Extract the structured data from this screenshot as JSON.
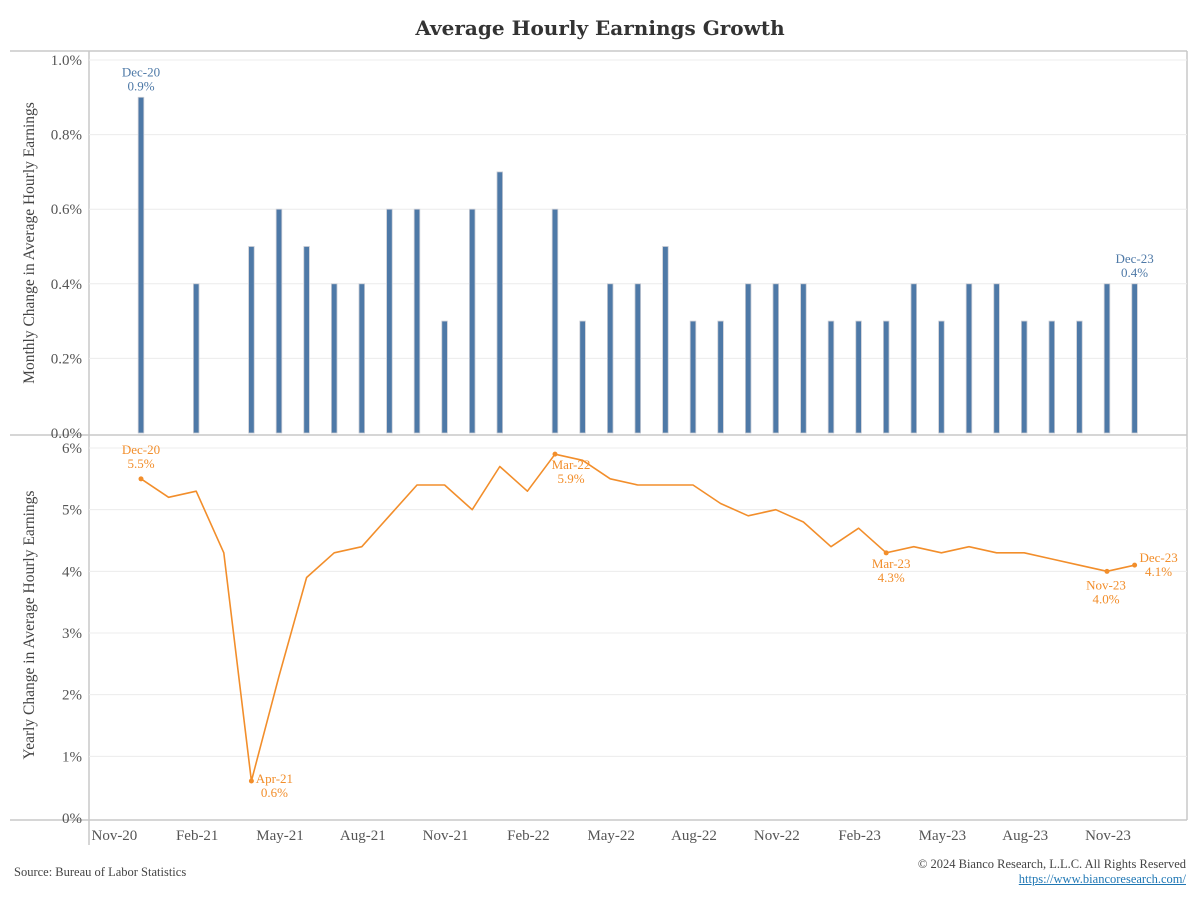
{
  "colors": {
    "bar": "#4e79a7",
    "line": "#f28e2b",
    "grid": "#ececec",
    "axis": "#c8c8c8"
  },
  "footer": {
    "source": "Source: Bureau of Labor Statistics",
    "copyright": "© 2024 Bianco Research, L.L.C. All Rights Reserved",
    "url": "https://www.biancoresearch.com/"
  },
  "chart_data": [
    {
      "type": "bar",
      "title": "Average Hourly Earnings Growth",
      "ylabel": "Monthly Change in Average Hourly Earnings",
      "xlabel": "",
      "ylim": [
        0,
        1.0
      ],
      "yticks": [
        "0.0%",
        "0.2%",
        "0.4%",
        "0.6%",
        "0.8%",
        "1.0%"
      ],
      "ytick_values": [
        0,
        0.2,
        0.4,
        0.6,
        0.8,
        1.0
      ],
      "grid": true,
      "categories": [
        "Dec-20",
        "Jan-21",
        "Feb-21",
        "Mar-21",
        "Apr-21",
        "May-21",
        "Jun-21",
        "Jul-21",
        "Aug-21",
        "Sep-21",
        "Oct-21",
        "Nov-21",
        "Dec-21",
        "Jan-22",
        "Feb-22",
        "Mar-22",
        "Apr-22",
        "May-22",
        "Jun-22",
        "Jul-22",
        "Aug-22",
        "Sep-22",
        "Oct-22",
        "Nov-22",
        "Dec-22",
        "Jan-23",
        "Feb-23",
        "Mar-23",
        "Apr-23",
        "May-23",
        "Jun-23",
        "Jul-23",
        "Aug-23",
        "Sep-23",
        "Oct-23",
        "Nov-23",
        "Dec-23"
      ],
      "values": [
        0.9,
        0.0,
        0.4,
        0.0,
        0.5,
        0.6,
        0.5,
        0.4,
        0.4,
        0.6,
        0.6,
        0.3,
        0.6,
        0.7,
        0.0,
        0.6,
        0.3,
        0.4,
        0.4,
        0.5,
        0.3,
        0.3,
        0.4,
        0.4,
        0.4,
        0.3,
        0.3,
        0.3,
        0.4,
        0.3,
        0.4,
        0.4,
        0.3,
        0.3,
        0.3,
        0.4,
        0.4
      ],
      "annotations": [
        {
          "category": "Dec-20",
          "label": "Dec-20",
          "value_label": "0.9%"
        },
        {
          "category": "Dec-23",
          "label": "Dec-23",
          "value_label": "0.4%"
        }
      ]
    },
    {
      "type": "line",
      "ylabel": "Yearly Change in Average Hourly Earnings",
      "xlabel": "",
      "ylim": [
        0,
        6
      ],
      "yticks": [
        "0%",
        "1%",
        "2%",
        "3%",
        "4%",
        "5%",
        "6%"
      ],
      "ytick_values": [
        0,
        1,
        2,
        3,
        4,
        5,
        6
      ],
      "grid": true,
      "xticks": [
        "Nov-20",
        "Feb-21",
        "May-21",
        "Aug-21",
        "Nov-21",
        "Feb-22",
        "May-22",
        "Aug-22",
        "Nov-22",
        "Feb-23",
        "May-23",
        "Aug-23",
        "Nov-23"
      ],
      "xtick_index": [
        -1,
        2,
        5,
        8,
        11,
        14,
        17,
        20,
        23,
        26,
        29,
        32,
        35
      ],
      "categories": [
        "Dec-20",
        "Jan-21",
        "Feb-21",
        "Mar-21",
        "Apr-21",
        "May-21",
        "Jun-21",
        "Jul-21",
        "Aug-21",
        "Sep-21",
        "Oct-21",
        "Nov-21",
        "Dec-21",
        "Jan-22",
        "Feb-22",
        "Mar-22",
        "Apr-22",
        "May-22",
        "Jun-22",
        "Jul-22",
        "Aug-22",
        "Sep-22",
        "Oct-22",
        "Nov-22",
        "Dec-22",
        "Jan-23",
        "Feb-23",
        "Mar-23",
        "Apr-23",
        "May-23",
        "Jun-23",
        "Jul-23",
        "Aug-23",
        "Sep-23",
        "Oct-23",
        "Nov-23",
        "Dec-23"
      ],
      "values": [
        5.5,
        5.2,
        5.3,
        4.3,
        0.6,
        2.3,
        3.9,
        4.3,
        4.4,
        4.9,
        5.4,
        5.4,
        5.0,
        5.7,
        5.3,
        5.9,
        5.8,
        5.5,
        5.4,
        5.4,
        5.4,
        5.1,
        4.9,
        5.0,
        4.8,
        4.4,
        4.7,
        4.3,
        4.4,
        4.3,
        4.4,
        4.3,
        4.3,
        4.2,
        4.1,
        4.0,
        4.1
      ],
      "annotations": [
        {
          "category": "Dec-20",
          "label": "Dec-20",
          "value_label": "5.5%",
          "position": "above"
        },
        {
          "category": "Apr-21",
          "label": "Apr-21",
          "value_label": "0.6%",
          "position": "right"
        },
        {
          "category": "Mar-22",
          "label": "Mar-22",
          "value_label": "5.9%",
          "position": "below"
        },
        {
          "category": "Mar-23",
          "label": "Mar-23",
          "value_label": "4.3%",
          "position": "below"
        },
        {
          "category": "Nov-23",
          "label": "Nov-23",
          "value_label": "4.0%",
          "position": "below"
        },
        {
          "category": "Dec-23",
          "label": "Dec-23",
          "value_label": "4.1%",
          "position": "right"
        }
      ]
    }
  ]
}
